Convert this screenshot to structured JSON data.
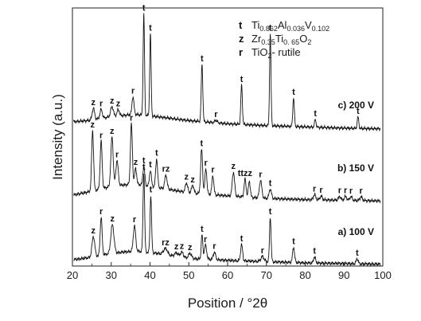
{
  "chart_data": {
    "type": "line",
    "xlabel": "Position / °2θ",
    "ylabel": "Intensity (a.u.)",
    "xlim": [
      20,
      100
    ],
    "x_ticks": [
      20,
      30,
      40,
      50,
      60,
      70,
      80,
      90,
      100
    ],
    "grid": false,
    "legend_position": "top-right",
    "legend": [
      {
        "symbol": "t",
        "formula": [
          [
            "Ti",
            "n"
          ],
          [
            "0.862",
            "s"
          ],
          [
            "Al",
            "n"
          ],
          [
            "0.036",
            "s"
          ],
          [
            "V",
            "n"
          ],
          [
            "0.102",
            "s"
          ]
        ]
      },
      {
        "symbol": "z",
        "formula": [
          [
            "Zr",
            "n"
          ],
          [
            "0.35",
            "s"
          ],
          [
            "Ti",
            "n"
          ],
          [
            "0. 65",
            "s"
          ],
          [
            "O",
            "n"
          ],
          [
            "2",
            "s"
          ]
        ]
      },
      {
        "symbol": "r",
        "formula": [
          [
            "TiO",
            "n"
          ],
          [
            "2",
            "s"
          ],
          [
            "- rutile",
            "n"
          ]
        ]
      }
    ],
    "series": [
      {
        "name": "a) 100 V",
        "baseline": [
          [
            20,
            0.1
          ],
          [
            24,
            0.13
          ],
          [
            30,
            0.2
          ],
          [
            36,
            0.24
          ],
          [
            42,
            0.2
          ],
          [
            50,
            0.12
          ],
          [
            60,
            0.09
          ],
          [
            70,
            0.07
          ],
          [
            80,
            0.05
          ],
          [
            90,
            0.04
          ],
          [
            99,
            0.03
          ]
        ],
        "peaks": [
          {
            "x": 25.4,
            "h": 0.32,
            "w": 0.35,
            "letter": "z"
          },
          {
            "x": 27.4,
            "h": 0.6,
            "w": 0.25,
            "letter": "r"
          },
          {
            "x": 30.3,
            "h": 0.45,
            "w": 0.4,
            "letter": "z"
          },
          {
            "x": 36.0,
            "h": 0.4,
            "w": 0.3,
            "letter": "r"
          },
          {
            "x": 38.4,
            "h": 1.25,
            "w": 0.2,
            "letter": "t"
          },
          {
            "x": 40.2,
            "h": 0.9,
            "w": 0.2,
            "letter": "t"
          },
          {
            "x": 44.0,
            "h": 0.1,
            "w": 0.5,
            "letter": "rz"
          },
          {
            "x": 46.8,
            "h": 0.06,
            "w": 0.4,
            "letter": "z"
          },
          {
            "x": 48.2,
            "h": 0.08,
            "w": 0.4,
            "letter": "z"
          },
          {
            "x": 50.3,
            "h": 0.08,
            "w": 0.4,
            "letter": "z"
          },
          {
            "x": 53.4,
            "h": 0.38,
            "w": 0.2,
            "letter": "t"
          },
          {
            "x": 54.3,
            "h": 0.22,
            "w": 0.3,
            "letter": "r"
          },
          {
            "x": 56.6,
            "h": 0.12,
            "w": 0.3,
            "letter": "r"
          },
          {
            "x": 63.6,
            "h": 0.26,
            "w": 0.25,
            "letter": "t"
          },
          {
            "x": 69.0,
            "h": 0.08,
            "w": 0.4,
            "letter": "r"
          },
          {
            "x": 71.0,
            "h": 0.7,
            "w": 0.2,
            "letter": "t"
          },
          {
            "x": 77.0,
            "h": 0.24,
            "w": 0.25,
            "letter": "t"
          },
          {
            "x": 82.4,
            "h": 0.1,
            "w": 0.25,
            "letter": "t"
          },
          {
            "x": 93.4,
            "h": 0.08,
            "w": 0.25,
            "letter": "t"
          }
        ]
      },
      {
        "name": "b) 150 V",
        "baseline": [
          [
            20,
            1.12
          ],
          [
            24,
            1.17
          ],
          [
            30,
            1.26
          ],
          [
            36,
            1.3
          ],
          [
            42,
            1.24
          ],
          [
            50,
            1.16
          ],
          [
            60,
            1.11
          ],
          [
            70,
            1.07
          ],
          [
            80,
            1.05
          ],
          [
            90,
            1.04
          ],
          [
            99,
            1.03
          ]
        ],
        "peaks": [
          {
            "x": 25.2,
            "h": 0.95,
            "w": 0.25,
            "letter": "z"
          },
          {
            "x": 27.4,
            "h": 0.75,
            "w": 0.25,
            "letter": "r"
          },
          {
            "x": 30.2,
            "h": 0.78,
            "w": 0.3,
            "letter": "z"
          },
          {
            "x": 31.5,
            "h": 0.4,
            "w": 0.3,
            "letter": "r"
          },
          {
            "x": 35.2,
            "h": 0.95,
            "w": 0.25,
            "letter": "r"
          },
          {
            "x": 36.3,
            "h": 0.25,
            "w": 0.25,
            "letter": "z"
          },
          {
            "x": 38.4,
            "h": 0.3,
            "w": 0.25,
            "letter": "t"
          },
          {
            "x": 40.1,
            "h": 0.25,
            "w": 0.25,
            "letter": "t"
          },
          {
            "x": 41.7,
            "h": 0.45,
            "w": 0.25,
            "letter": "t"
          },
          {
            "x": 44.1,
            "h": 0.22,
            "w": 0.3,
            "letter": "rz"
          },
          {
            "x": 49.4,
            "h": 0.15,
            "w": 0.3,
            "letter": "z"
          },
          {
            "x": 51.0,
            "h": 0.12,
            "w": 0.3,
            "letter": "z"
          },
          {
            "x": 53.3,
            "h": 0.7,
            "w": 0.25,
            "letter": "t"
          },
          {
            "x": 54.4,
            "h": 0.4,
            "w": 0.25,
            "letter": "r"
          },
          {
            "x": 56.2,
            "h": 0.3,
            "w": 0.25,
            "letter": "r"
          },
          {
            "x": 61.5,
            "h": 0.38,
            "w": 0.3,
            "letter": "z"
          },
          {
            "x": 64.5,
            "h": 0.28,
            "w": 0.25,
            "letter": "ttzz"
          },
          {
            "x": 65.6,
            "h": 0.25,
            "w": 0.25,
            "letter": ""
          },
          {
            "x": 68.5,
            "h": 0.28,
            "w": 0.3,
            "letter": "r"
          },
          {
            "x": 71.0,
            "h": 0.15,
            "w": 0.3,
            "letter": "t"
          },
          {
            "x": 82.4,
            "h": 0.08,
            "w": 0.3,
            "letter": "r"
          },
          {
            "x": 84.1,
            "h": 0.06,
            "w": 0.3,
            "letter": "r"
          },
          {
            "x": 88.9,
            "h": 0.06,
            "w": 0.3,
            "letter": "r"
          },
          {
            "x": 90.4,
            "h": 0.06,
            "w": 0.3,
            "letter": "r"
          },
          {
            "x": 91.8,
            "h": 0.06,
            "w": 0.3,
            "letter": "r"
          },
          {
            "x": 94.4,
            "h": 0.06,
            "w": 0.3,
            "letter": "r"
          }
        ]
      },
      {
        "name": "c) 200 V",
        "baseline": [
          [
            20,
            2.28
          ],
          [
            24,
            2.3
          ],
          [
            30,
            2.36
          ],
          [
            36,
            2.4
          ],
          [
            42,
            2.36
          ],
          [
            50,
            2.3
          ],
          [
            60,
            2.25
          ],
          [
            70,
            2.22
          ],
          [
            80,
            2.2
          ],
          [
            90,
            2.18
          ],
          [
            99,
            2.17
          ]
        ],
        "peaks": [
          {
            "x": 25.4,
            "h": 0.18,
            "w": 0.3,
            "letter": "z"
          },
          {
            "x": 27.4,
            "h": 0.14,
            "w": 0.3,
            "letter": "r"
          },
          {
            "x": 30.2,
            "h": 0.16,
            "w": 0.35,
            "letter": "z"
          },
          {
            "x": 31.8,
            "h": 0.1,
            "w": 0.3,
            "letter": "z"
          },
          {
            "x": 35.6,
            "h": 0.28,
            "w": 0.25,
            "letter": "r"
          },
          {
            "x": 38.4,
            "h": 1.6,
            "w": 0.18,
            "letter": "t"
          },
          {
            "x": 40.1,
            "h": 1.3,
            "w": 0.18,
            "letter": "t"
          },
          {
            "x": 53.4,
            "h": 0.9,
            "w": 0.2,
            "letter": "t"
          },
          {
            "x": 57.0,
            "h": 0.04,
            "w": 0.3,
            "letter": "r"
          },
          {
            "x": 63.6,
            "h": 0.62,
            "w": 0.2,
            "letter": "t"
          },
          {
            "x": 71.0,
            "h": 1.45,
            "w": 0.18,
            "letter": "t"
          },
          {
            "x": 77.0,
            "h": 0.45,
            "w": 0.2,
            "letter": "t"
          },
          {
            "x": 82.6,
            "h": 0.12,
            "w": 0.2,
            "letter": "t"
          },
          {
            "x": 93.6,
            "h": 0.18,
            "w": 0.2,
            "letter": "t"
          }
        ]
      }
    ]
  }
}
